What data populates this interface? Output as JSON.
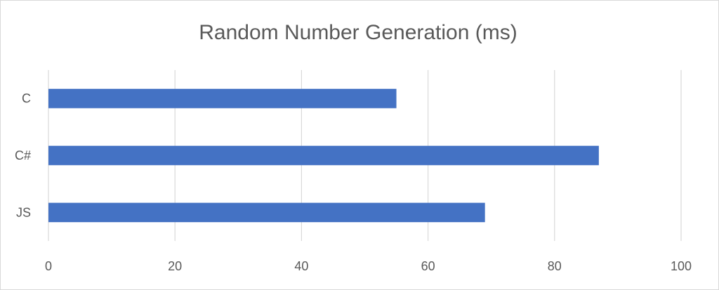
{
  "chart_data": {
    "type": "bar",
    "orientation": "horizontal",
    "title": "Random Number Generation (ms)",
    "xlabel": "",
    "ylabel": "",
    "categories": [
      "C",
      "C#",
      "JS"
    ],
    "series": [
      {
        "values": [
          55,
          87,
          69
        ]
      }
    ],
    "xlim": [
      0,
      100
    ],
    "x_ticks": [
      "0",
      "20",
      "40",
      "60",
      "80",
      "100"
    ],
    "grid": true,
    "legend": "none",
    "colors": {
      "bar": "#4472c4",
      "grid": "#d9d9d9",
      "text": "#595959"
    }
  }
}
